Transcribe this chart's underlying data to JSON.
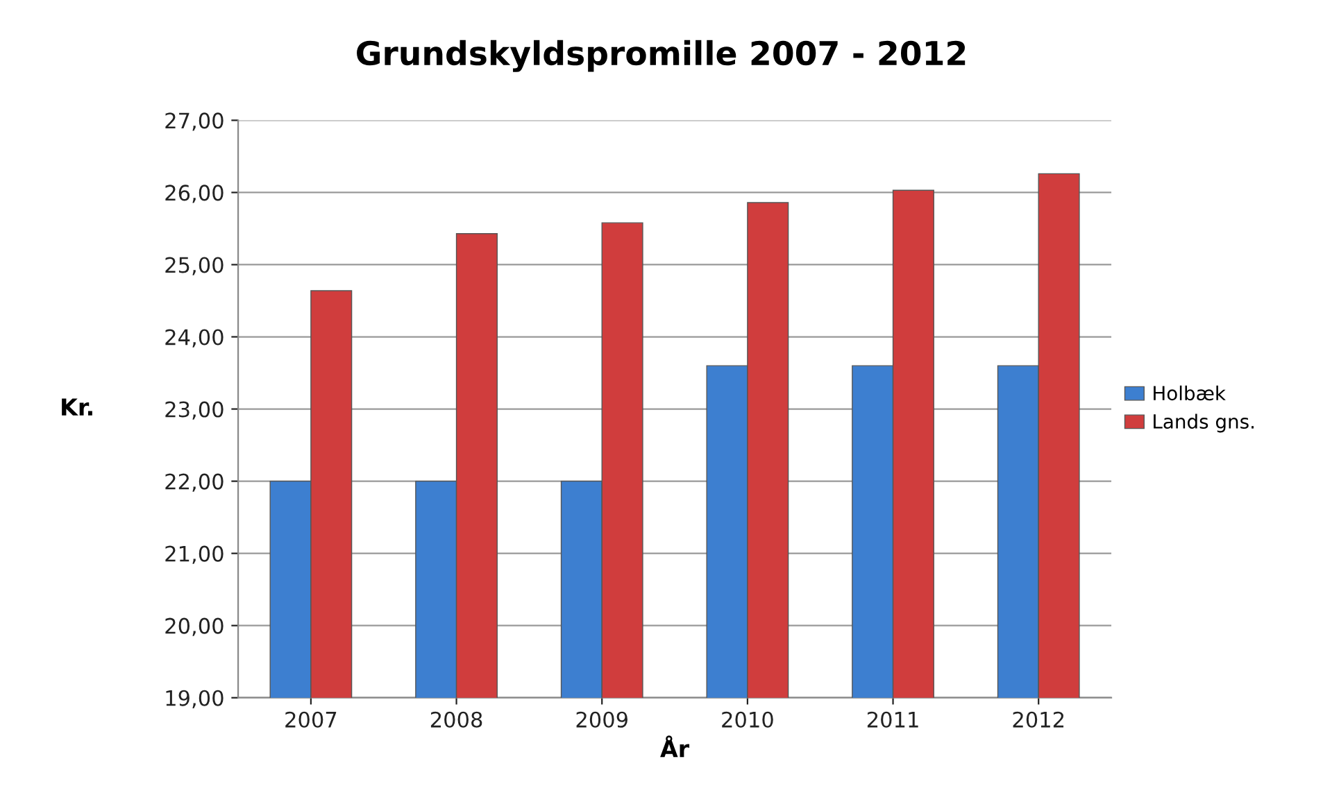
{
  "chart_data": {
    "type": "bar",
    "title": "Grundskyldspromille 2007 - 2012",
    "xlabel": "År",
    "ylabel": "Kr.",
    "categories": [
      "2007",
      "2008",
      "2009",
      "2010",
      "2011",
      "2012"
    ],
    "series": [
      {
        "name": "Holbæk",
        "color": "#3d7fd0",
        "values": [
          22.0,
          22.0,
          22.0,
          23.6,
          23.6,
          23.6
        ]
      },
      {
        "name": "Lands gns.",
        "color": "#d03d3d",
        "values": [
          24.64,
          25.43,
          25.58,
          25.86,
          26.03,
          26.26
        ]
      }
    ],
    "ylim": [
      19,
      27
    ],
    "yticks": [
      {
        "value": 19,
        "label": "19,00"
      },
      {
        "value": 20,
        "label": "20,00"
      },
      {
        "value": 21,
        "label": "21,00"
      },
      {
        "value": 22,
        "label": "22,00"
      },
      {
        "value": 23,
        "label": "23,00"
      },
      {
        "value": 24,
        "label": "24,00"
      },
      {
        "value": 25,
        "label": "25,00"
      },
      {
        "value": 26,
        "label": "26,00"
      },
      {
        "value": 27,
        "label": "27,00"
      }
    ],
    "grid": "y",
    "legend": "right"
  }
}
